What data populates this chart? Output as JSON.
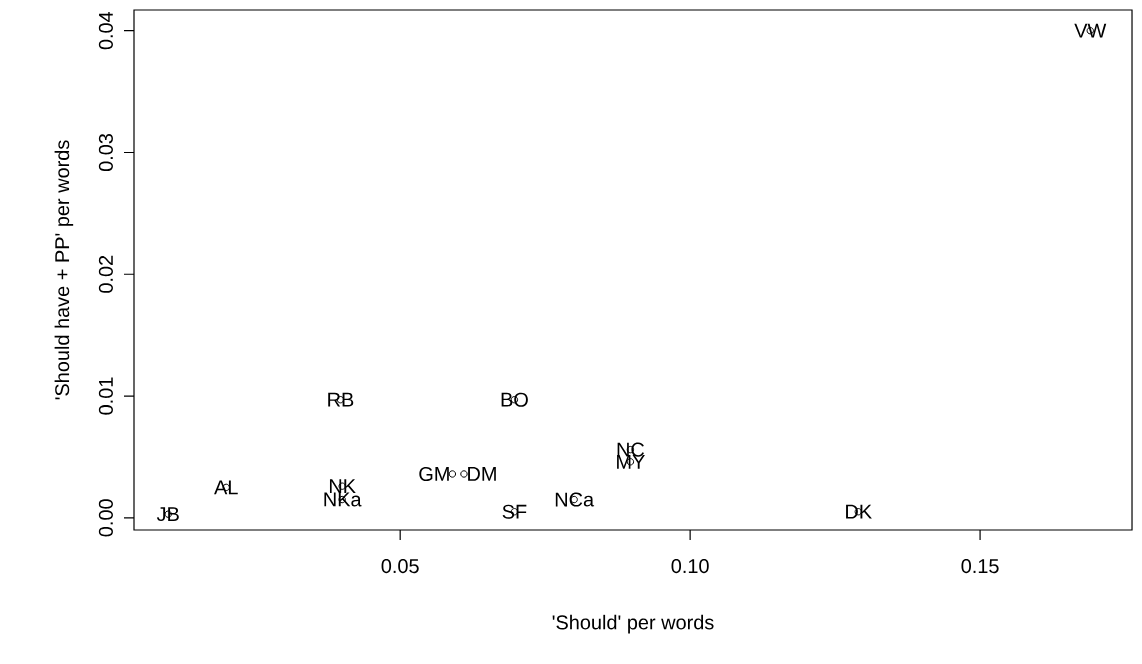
{
  "chart_data": {
    "type": "scatter",
    "xlabel": "'Should' per words",
    "ylabel": "'Should have + PP' per words",
    "x": [
      0.01,
      0.02,
      0.04,
      0.04,
      0.0397,
      0.0697,
      0.059,
      0.061,
      0.0697,
      0.08,
      0.0897,
      0.0897,
      0.129,
      0.169
    ],
    "series": [
      {
        "color": "#000000",
        "values": [
          0.0003,
          0.0025,
          0.0026,
          0.0015,
          0.0097,
          0.0097,
          0.0036,
          0.0036,
          0.0005,
          0.0015,
          0.0056,
          0.0046,
          0.0005,
          0.04
        ]
      }
    ],
    "marker": "circle",
    "grid": false,
    "xlim": [
      0.0041,
      0.1762
    ],
    "ylim": [
      -0.001,
      0.0417
    ],
    "xticks": [
      {
        "value": 0.05,
        "label": "0.05"
      },
      {
        "value": 0.1,
        "label": "0.10"
      },
      {
        "value": 0.15,
        "label": "0.15"
      }
    ],
    "yticks": [
      {
        "value": 0,
        "label": "0.00"
      },
      {
        "value": 0.01,
        "label": "0.01"
      },
      {
        "value": 0.02,
        "label": "0.02"
      },
      {
        "value": 0.03,
        "label": "0.03"
      },
      {
        "value": 0.04,
        "label": "0.04"
      }
    ],
    "annotations": [
      {
        "text": "JB",
        "x": 0.01,
        "y": 0.0003
      },
      {
        "text": "AL",
        "x": 0.02,
        "y": 0.0025
      },
      {
        "text": "NK",
        "x": 0.04,
        "y": 0.0026
      },
      {
        "text": "NKa",
        "x": 0.04,
        "y": 0.0015
      },
      {
        "text": "RB",
        "x": 0.0397,
        "y": 0.0097
      },
      {
        "text": "BO",
        "x": 0.0697,
        "y": 0.0097
      },
      {
        "text": "GM",
        "x": 0.059,
        "y": 0.0036
      },
      {
        "text": "DM",
        "x": 0.061,
        "y": 0.0036
      },
      {
        "text": "SF",
        "x": 0.0697,
        "y": 0.0005
      },
      {
        "text": "NCa",
        "x": 0.08,
        "y": 0.0015
      },
      {
        "text": "NC",
        "x": 0.0897,
        "y": 0.0056
      },
      {
        "text": "MY",
        "x": 0.0897,
        "y": 0.0046
      },
      {
        "text": "DK",
        "x": 0.129,
        "y": 0.0005
      },
      {
        "text": "VW",
        "x": 0.169,
        "y": 0.04
      }
    ]
  }
}
